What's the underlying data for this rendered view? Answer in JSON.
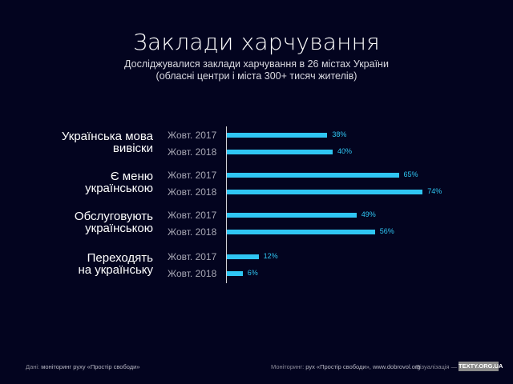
{
  "chart_data": {
    "type": "bar",
    "orientation": "horizontal",
    "title": "Заклади харчування",
    "subtitle": [
      "Досліджувалися заклади харчування в 26 містах України",
      "(обласні центри і міста 300+ тисяч жителів)"
    ],
    "groups": [
      {
        "label": [
          "Українська мова",
          "вивіски"
        ],
        "items": [
          {
            "period": "Жовт. 2017",
            "value": 38,
            "label": "38%"
          },
          {
            "period": "Жовт. 2018",
            "value": 40,
            "label": "40%"
          }
        ]
      },
      {
        "label": [
          "Є  меню",
          "українською"
        ],
        "items": [
          {
            "period": "Жовт. 2017",
            "value": 65,
            "label": "65%"
          },
          {
            "period": "Жовт. 2018",
            "value": 74,
            "label": "74%"
          }
        ]
      },
      {
        "label": [
          "Обслуговують",
          "українською"
        ],
        "items": [
          {
            "period": "Жовт. 2017",
            "value": 49,
            "label": "49%"
          },
          {
            "period": "Жовт. 2018",
            "value": 56,
            "label": "56%"
          }
        ]
      },
      {
        "label": [
          "Переходять",
          "на українську"
        ],
        "items": [
          {
            "period": "Жовт. 2017",
            "value": 12,
            "label": "12%"
          },
          {
            "period": "Жовт. 2018",
            "value": 6,
            "label": "6%"
          }
        ]
      }
    ],
    "bar_color": "#2fc6f3",
    "grid": false
  },
  "footer": {
    "data_label": "Дані:",
    "data_text": "моніторинг руху «Простір свободи»",
    "monitoring_label": "Моніторинг:",
    "monitoring_text": "рух «Простір свободи», www.dobrovol.org",
    "viz_label": "Візуалізація —",
    "logo": "TEXTY.ORG.UA"
  }
}
